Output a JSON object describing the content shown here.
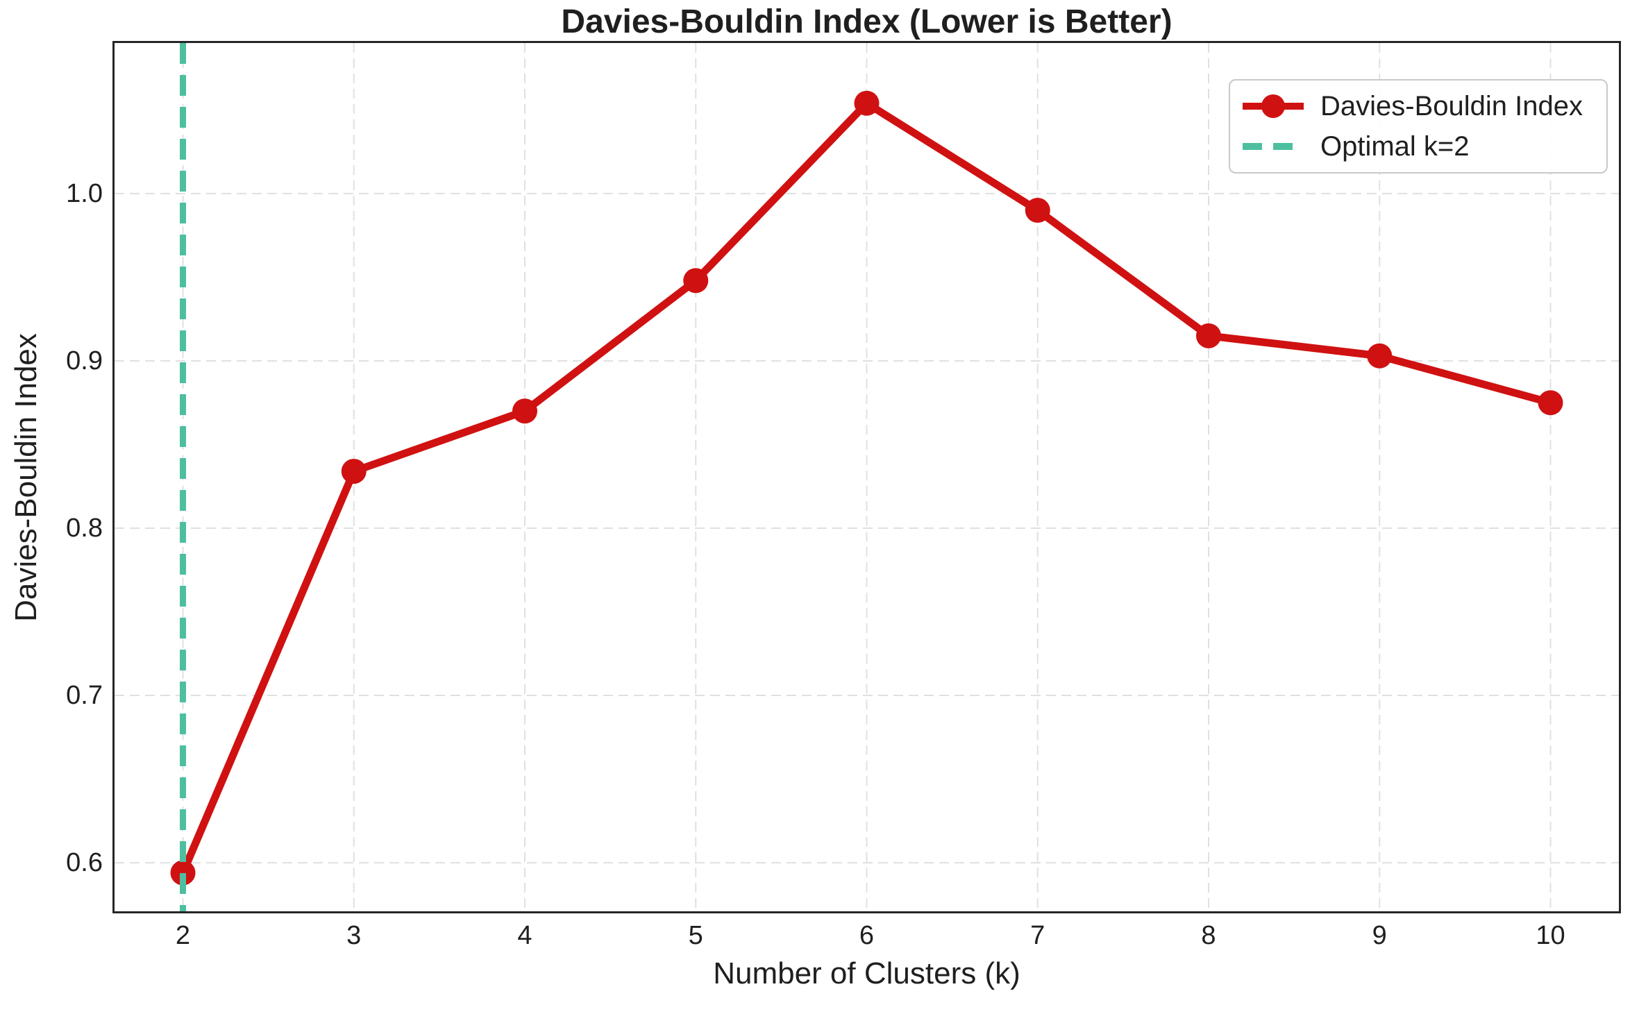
{
  "chart_data": {
    "type": "line",
    "title": "Davies-Bouldin Index (Lower is Better)",
    "xlabel": "Number of Clusters (k)",
    "ylabel": "Davies-Bouldin Index",
    "x": [
      2,
      3,
      4,
      5,
      6,
      7,
      8,
      9,
      10
    ],
    "series": [
      {
        "name": "Davies-Bouldin Index",
        "values": [
          0.594,
          0.834,
          0.87,
          0.948,
          1.054,
          0.99,
          0.915,
          0.903,
          0.875
        ],
        "color": "#d01111",
        "marker": "circle"
      }
    ],
    "vline": {
      "x": 2,
      "label": "Optimal k=2",
      "color": "#4dbf9f",
      "style": "dashed"
    },
    "xticks": [
      2,
      3,
      4,
      5,
      6,
      7,
      8,
      9,
      10
    ],
    "xtick_labels": [
      "2",
      "3",
      "4",
      "5",
      "6",
      "7",
      "8",
      "9",
      "10"
    ],
    "yticks": [
      0.6,
      0.7,
      0.8,
      0.9,
      1.0
    ],
    "ytick_labels": [
      "0.6",
      "0.7",
      "0.8",
      "0.9",
      "1.0"
    ],
    "xlim": [
      1.6,
      10.4
    ],
    "ylim": [
      0.571,
      1.09
    ],
    "grid": true,
    "grid_style": "dashed",
    "legend_position": "upper right",
    "legend": {
      "entries": [
        {
          "label": "Davies-Bouldin Index",
          "color": "#d01111",
          "style": "line-marker"
        },
        {
          "label": "Optimal k=2",
          "color": "#4dbf9f",
          "style": "dashed"
        }
      ]
    },
    "colors": {
      "grid": "#e0e0e0",
      "spine": "#262626",
      "text": "#1f1f1f",
      "background": "#ffffff"
    }
  }
}
